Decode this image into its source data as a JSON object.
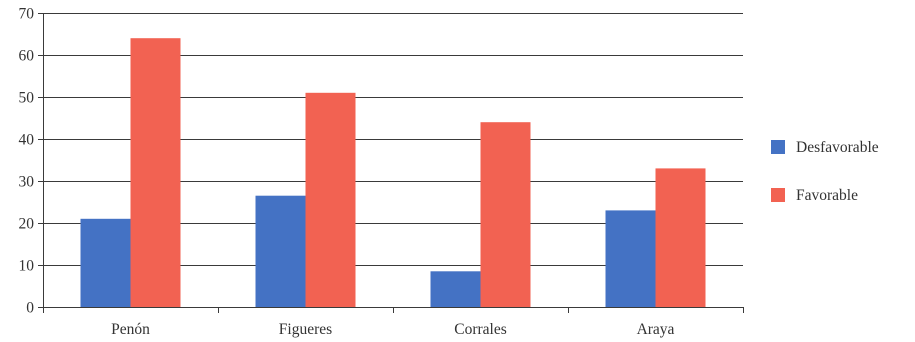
{
  "chart_data": {
    "type": "bar",
    "categories": [
      "Penón",
      "Figueres",
      "Corrales",
      "Araya"
    ],
    "series": [
      {
        "name": "Desfavorable",
        "values": [
          21,
          26.5,
          8.5,
          23
        ],
        "color": "#4472c4"
      },
      {
        "name": "Favorable",
        "values": [
          64,
          51,
          44,
          33
        ],
        "color": "#f26252"
      }
    ],
    "ylim": [
      0,
      70
    ],
    "yticks": [
      0,
      10,
      20,
      30,
      40,
      50,
      60,
      70
    ],
    "grid": true,
    "legend": "right"
  }
}
